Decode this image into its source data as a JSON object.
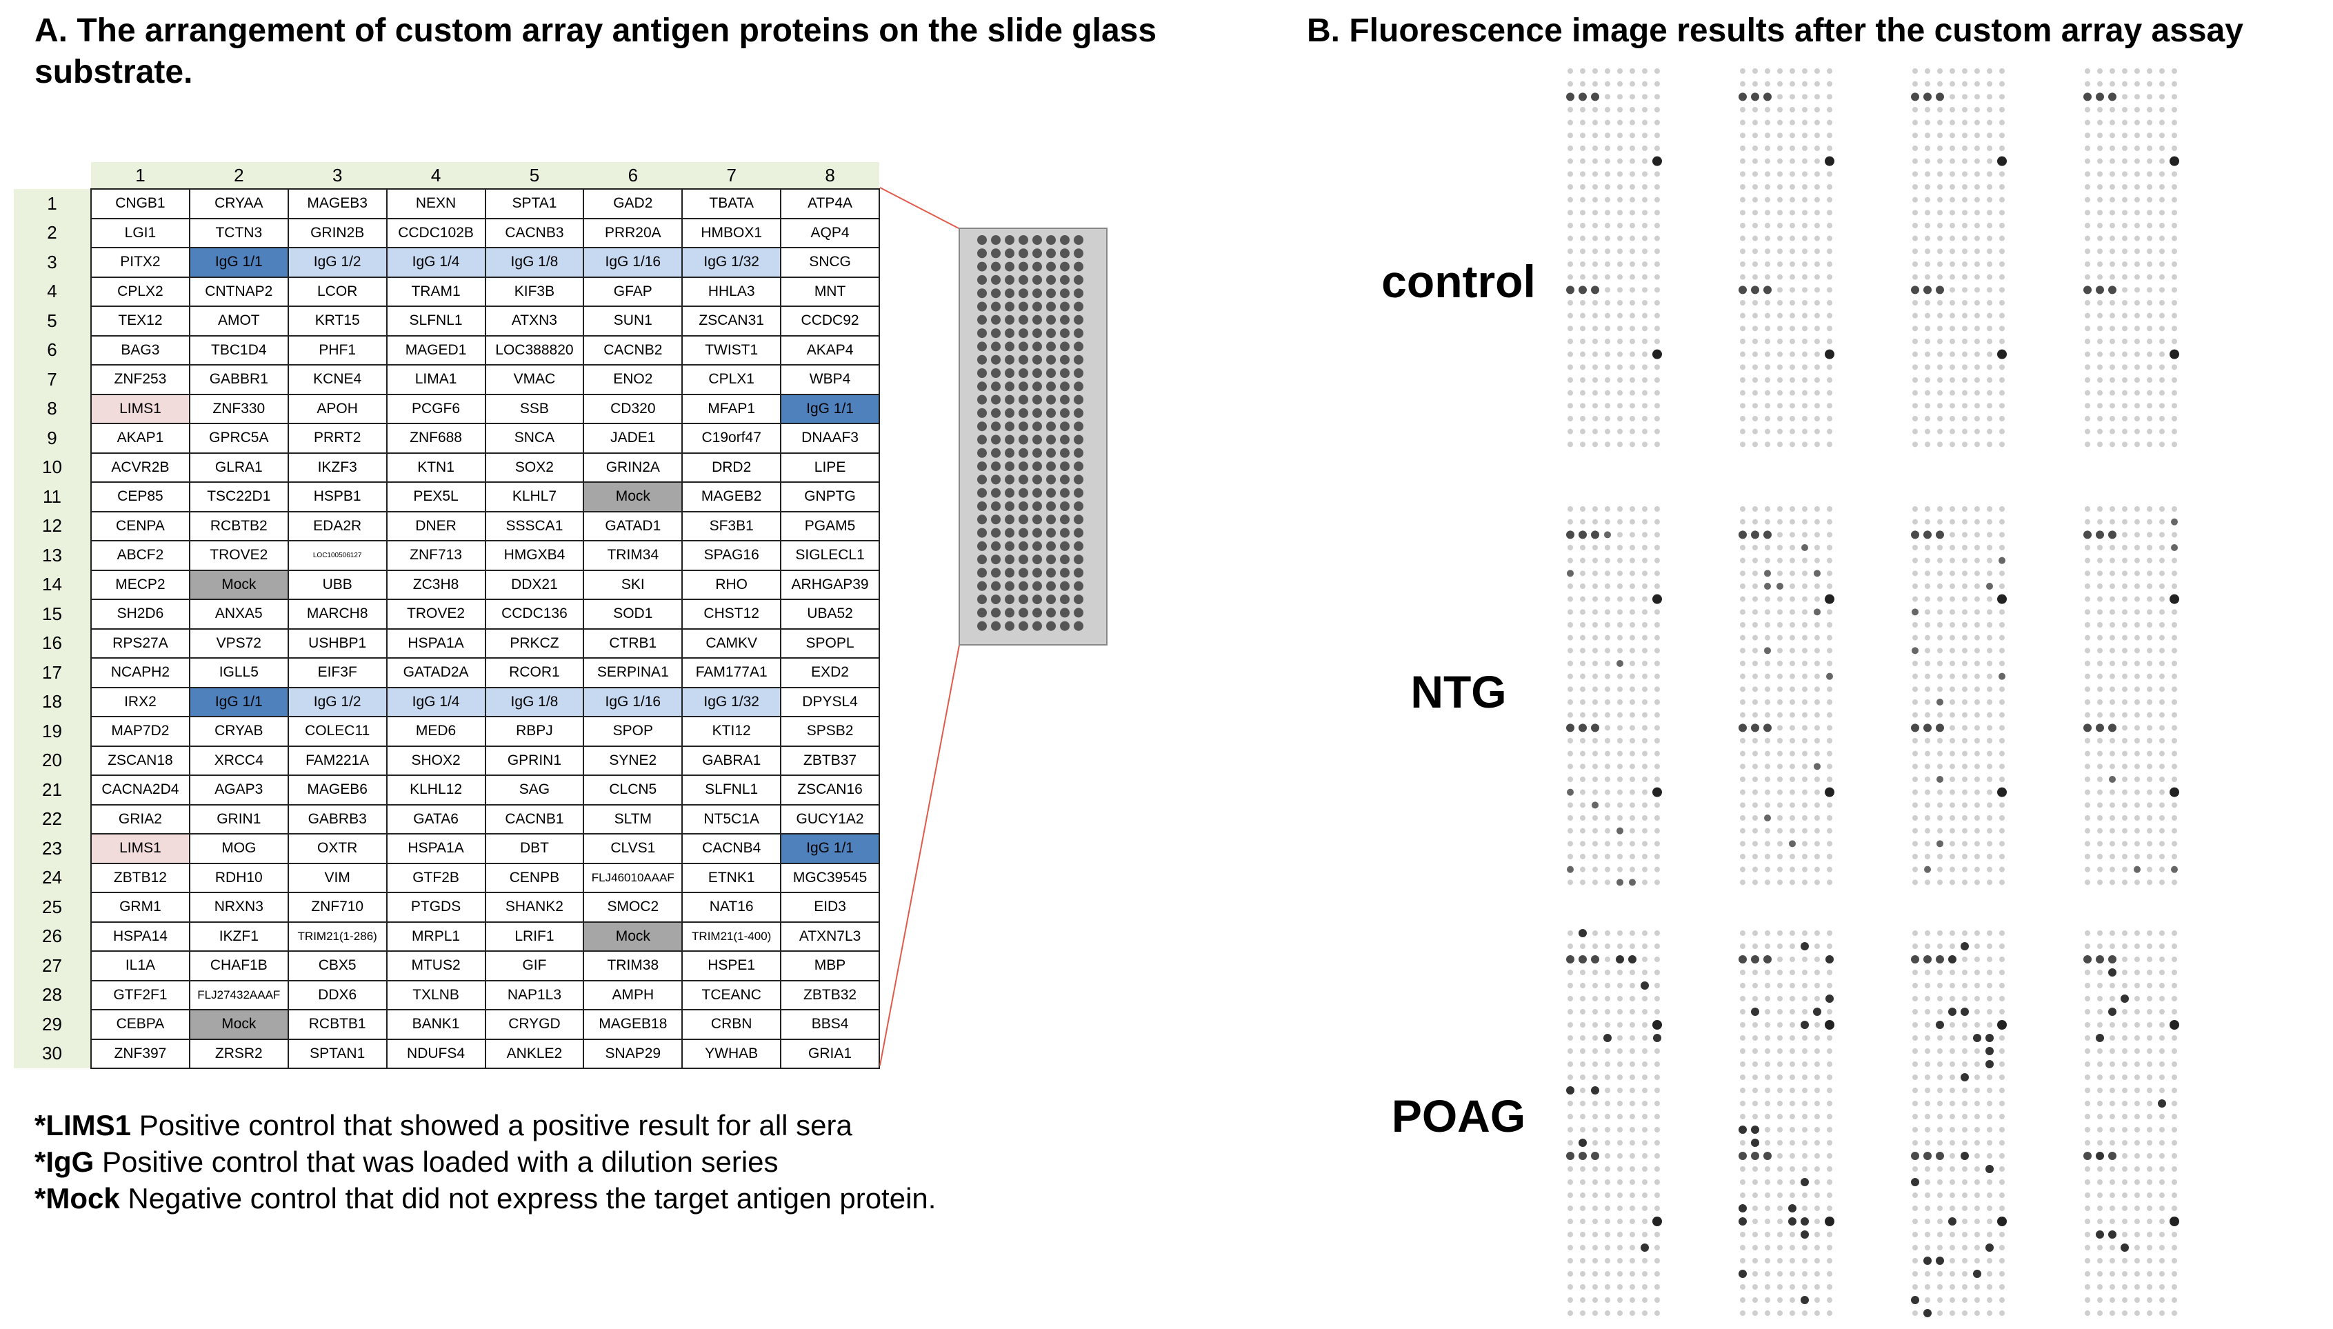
{
  "panelA": {
    "title": "A. The arrangement of custom array antigen proteins on the slide glass substrate.",
    "columns": [
      "1",
      "2",
      "3",
      "4",
      "5",
      "6",
      "7",
      "8"
    ],
    "rows": [
      {
        "n": "1",
        "cells": [
          "CNGB1",
          "CRYAA",
          "MAGEB3",
          "NEXN",
          "SPTA1",
          "GAD2",
          "TBATA",
          "ATP4A"
        ]
      },
      {
        "n": "2",
        "cells": [
          "LGI1",
          "TCTN3",
          "GRIN2B",
          "CCDC102B",
          "CACNB3",
          "PRR20A",
          "HMBOX1",
          "AQP4"
        ]
      },
      {
        "n": "3",
        "cells": [
          "PITX2",
          "IgG 1/1",
          "IgG 1/2",
          "IgG 1/4",
          "IgG 1/8",
          "IgG 1/16",
          "IgG 1/32",
          "SNCG"
        ]
      },
      {
        "n": "4",
        "cells": [
          "CPLX2",
          "CNTNAP2",
          "LCOR",
          "TRAM1",
          "KIF3B",
          "GFAP",
          "HHLA3",
          "MNT"
        ]
      },
      {
        "n": "5",
        "cells": [
          "TEX12",
          "AMOT",
          "KRT15",
          "SLFNL1",
          "ATXN3",
          "SUN1",
          "ZSCAN31",
          "CCDC92"
        ]
      },
      {
        "n": "6",
        "cells": [
          "BAG3",
          "TBC1D4",
          "PHF1",
          "MAGED1",
          "LOC388820",
          "CACNB2",
          "TWIST1",
          "AKAP4"
        ]
      },
      {
        "n": "7",
        "cells": [
          "ZNF253",
          "GABBR1",
          "KCNE4",
          "LIMA1",
          "VMAC",
          "ENO2",
          "CPLX1",
          "WBP4"
        ]
      },
      {
        "n": "8",
        "cells": [
          "LIMS1",
          "ZNF330",
          "APOH",
          "PCGF6",
          "SSB",
          "CD320",
          "MFAP1",
          "IgG 1/1"
        ]
      },
      {
        "n": "9",
        "cells": [
          "AKAP1",
          "GPRC5A",
          "PRRT2",
          "ZNF688",
          "SNCA",
          "JADE1",
          "C19orf47",
          "DNAAF3"
        ]
      },
      {
        "n": "10",
        "cells": [
          "ACVR2B",
          "GLRA1",
          "IKZF3",
          "KTN1",
          "SOX2",
          "GRIN2A",
          "DRD2",
          "LIPE"
        ]
      },
      {
        "n": "11",
        "cells": [
          "CEP85",
          "TSC22D1",
          "HSPB1",
          "PEX5L",
          "KLHL7",
          "Mock",
          "MAGEB2",
          "GNPTG"
        ]
      },
      {
        "n": "12",
        "cells": [
          "CENPA",
          "RCBTB2",
          "EDA2R",
          "DNER",
          "SSSCA1",
          "GATAD1",
          "SF3B1",
          "PGAM5"
        ]
      },
      {
        "n": "13",
        "cells": [
          "ABCF2",
          "TROVE2",
          "LOC100506127",
          "ZNF713",
          "HMGXB4",
          "TRIM34",
          "SPAG16",
          "SIGLECL1"
        ]
      },
      {
        "n": "14",
        "cells": [
          "MECP2",
          "Mock",
          "UBB",
          "ZC3H8",
          "DDX21",
          "SKI",
          "RHO",
          "ARHGAP39"
        ]
      },
      {
        "n": "15",
        "cells": [
          "SH2D6",
          "ANXA5",
          "MARCH8",
          "TROVE2",
          "CCDC136",
          "SOD1",
          "CHST12",
          "UBA52"
        ]
      },
      {
        "n": "16",
        "cells": [
          "RPS27A",
          "VPS72",
          "USHBP1",
          "HSPA1A",
          "PRKCZ",
          "CTRB1",
          "CAMKV",
          "SPOPL"
        ]
      },
      {
        "n": "17",
        "cells": [
          "NCAPH2",
          "IGLL5",
          "EIF3F",
          "GATAD2A",
          "RCOR1",
          "SERPINA1",
          "FAM177A1",
          "EXD2"
        ]
      },
      {
        "n": "18",
        "cells": [
          "IRX2",
          "IgG 1/1",
          "IgG 1/2",
          "IgG 1/4",
          "IgG 1/8",
          "IgG 1/16",
          "IgG 1/32",
          "DPYSL4"
        ]
      },
      {
        "n": "19",
        "cells": [
          "MAP7D2",
          "CRYAB",
          "COLEC11",
          "MED6",
          "RBPJ",
          "SPOP",
          "KTI12",
          "SPSB2"
        ]
      },
      {
        "n": "20",
        "cells": [
          "ZSCAN18",
          "XRCC4",
          "FAM221A",
          "SHOX2",
          "GPRIN1",
          "SYNE2",
          "GABRA1",
          "ZBTB37"
        ]
      },
      {
        "n": "21",
        "cells": [
          "CACNA2D4",
          "AGAP3",
          "MAGEB6",
          "KLHL12",
          "SAG",
          "CLCN5",
          "SLFNL1",
          "ZSCAN16"
        ]
      },
      {
        "n": "22",
        "cells": [
          "GRIA2",
          "GRIN1",
          "GABRB3",
          "GATA6",
          "CACNB1",
          "SLTM",
          "NT5C1A",
          "GUCY1A2"
        ]
      },
      {
        "n": "23",
        "cells": [
          "LIMS1",
          "MOG",
          "OXTR",
          "HSPA1A",
          "DBT",
          "CLVS1",
          "CACNB4",
          "IgG 1/1"
        ]
      },
      {
        "n": "24",
        "cells": [
          "ZBTB12",
          "RDH10",
          "VIM",
          "GTF2B",
          "CENPB",
          "FLJ46010AAAF",
          "ETNK1",
          "MGC39545"
        ]
      },
      {
        "n": "25",
        "cells": [
          "GRM1",
          "NRXN3",
          "ZNF710",
          "PTGDS",
          "SHANK2",
          "SMOC2",
          "NAT16",
          "EID3"
        ]
      },
      {
        "n": "26",
        "cells": [
          "HSPA14",
          "IKZF1",
          "TRIM21(1-286)",
          "MRPL1",
          "LRIF1",
          "Mock",
          "TRIM21(1-400)",
          "ATXN7L3"
        ]
      },
      {
        "n": "27",
        "cells": [
          "IL1A",
          "CHAF1B",
          "CBX5",
          "MTUS2",
          "GIF",
          "TRIM38",
          "HSPE1",
          "MBP"
        ]
      },
      {
        "n": "28",
        "cells": [
          "GTF2F1",
          "FLJ27432AAAF",
          "DDX6",
          "TXLNB",
          "NAP1L3",
          "AMPH",
          "TCEANC",
          "ZBTB32"
        ]
      },
      {
        "n": "29",
        "cells": [
          "CEBPA",
          "Mock",
          "RCBTB1",
          "BANK1",
          "CRYGD",
          "MAGEB18",
          "CRBN",
          "BBS4"
        ]
      },
      {
        "n": "30",
        "cells": [
          "ZNF397",
          "ZRSR2",
          "SPTAN1",
          "NDUFS4",
          "ANKLE2",
          "SNAP29",
          "YWHAB",
          "GRIA1"
        ]
      }
    ],
    "legend": [
      {
        "key": "*LIMS1",
        "text": " Positive control that showed a positive result for all sera"
      },
      {
        "key": "*IgG",
        "text": " Positive control that was loaded with a dilution series"
      },
      {
        "key": "*Mock",
        "text": " Negative control that did not express the target antigen protein."
      }
    ],
    "colors": {
      "lims": "#f2dcdb",
      "igg_dark": "#4f81bd",
      "igg_light": "#c6d9f1",
      "mock": "#a6a6a6",
      "header_bg": "#eaf1dd"
    }
  },
  "panelB": {
    "title": "B. Fluorescence image results after the custom array assay",
    "groups": [
      "control",
      "NTG",
      "POAG"
    ]
  }
}
